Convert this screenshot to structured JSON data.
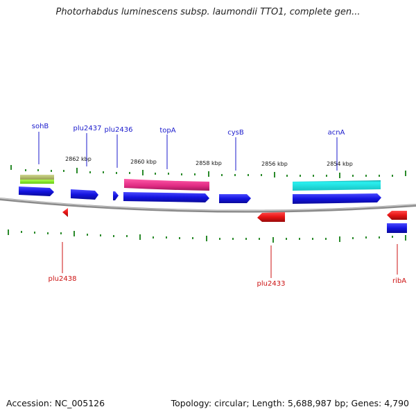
{
  "title": "Photorhabdus luminescens subsp. laumondii TTO1, complete gen...",
  "footer": {
    "accession": "Accession: NC_005126",
    "stats": "Topology: circular; Length: 5,688,987 bp; Genes: 4,790"
  },
  "scale_labels": [
    "2862 kbp",
    "2860 kbp",
    "2858 kbp",
    "2856 kbp",
    "2854 kbp"
  ],
  "forward_gene_labels": [
    "sohB",
    "plu2437",
    "plu2436",
    "topA",
    "cysB",
    "acnA"
  ],
  "reverse_gene_labels": [
    "plu2438",
    "plu2433",
    "ribA"
  ],
  "colors": {
    "forward_label": "#1a1acc",
    "reverse_label": "#cc1111",
    "forward_gene": "#1a1ae6",
    "reverse_gene": "#e61a1a",
    "backbone": "#8a8a8a",
    "tick": "#2a8a2a",
    "feature_magenta": "#e8368f",
    "feature_cyan": "#22dede",
    "feature_olive": "#b8c270",
    "feature_green": "#88ee22"
  }
}
